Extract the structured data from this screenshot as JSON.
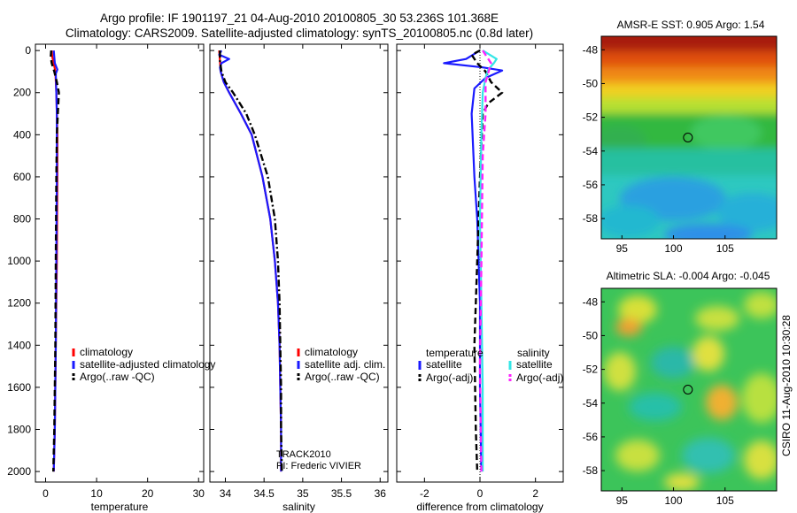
{
  "title": {
    "line1": "Argo profile: IF 1901197_21 04-Aug-2010 20100805_30 53.236S 101.368E",
    "line2": "Climatology: CARS2009. Satellite-adjusted climatology: synTS_20100805.nc (0.8d later)"
  },
  "side_label": "CSIRO 11-Aug-2010 10:30:28",
  "colors": {
    "climatology": "#ff0000",
    "satellite": "#1a1aff",
    "argo": "#000000",
    "sat_salinity": "#33e6e6",
    "argo_salinity": "#ff22ff"
  },
  "chart_data": [
    {
      "type": "line",
      "id": "temperature",
      "xlabel": "temperature",
      "xlim": [
        -2,
        31
      ],
      "ylim": [
        2050,
        -30
      ],
      "xticks": [
        0,
        10,
        20,
        30
      ],
      "yticks": [
        0,
        200,
        400,
        600,
        800,
        1000,
        1200,
        1400,
        1600,
        1800,
        2000
      ],
      "legend": [
        "climatology",
        "satellite-adjusted climatology",
        "Argo(..raw -QC)"
      ],
      "series": [
        {
          "name": "climatology",
          "style": "solid",
          "color": "#ff0000",
          "points": [
            [
              1.2,
              0
            ],
            [
              1.3,
              30
            ],
            [
              1.6,
              60
            ],
            [
              1.9,
              100
            ],
            [
              2.1,
              200
            ],
            [
              2.2,
              300
            ],
            [
              2.3,
              400
            ],
            [
              2.3,
              600
            ],
            [
              2.2,
              1000
            ],
            [
              2.0,
              1400
            ],
            [
              1.8,
              1800
            ],
            [
              1.6,
              2000
            ]
          ]
        },
        {
          "name": "satellite-adjusted climatology",
          "style": "solid",
          "color": "#1a1aff",
          "points": [
            [
              1.6,
              0
            ],
            [
              1.7,
              30
            ],
            [
              1.8,
              60
            ],
            [
              2.3,
              90
            ],
            [
              2.0,
              110
            ],
            [
              2.1,
              200
            ],
            [
              2.2,
              300
            ],
            [
              2.2,
              400
            ],
            [
              2.2,
              600
            ],
            [
              2.1,
              1000
            ],
            [
              2.0,
              1400
            ],
            [
              1.8,
              1800
            ],
            [
              1.6,
              2000
            ]
          ]
        },
        {
          "name": "Argo(..raw -QC)",
          "style": "dash",
          "color": "#000000",
          "points": [
            [
              1.1,
              0
            ],
            [
              1.0,
              30
            ],
            [
              1.2,
              60
            ],
            [
              1.7,
              100
            ],
            [
              2.2,
              150
            ],
            [
              2.6,
              200
            ],
            [
              2.5,
              250
            ],
            [
              2.4,
              300
            ],
            [
              2.2,
              400
            ],
            [
              2.1,
              600
            ],
            [
              2.0,
              1000
            ],
            [
              1.9,
              1400
            ],
            [
              1.7,
              1800
            ],
            [
              1.5,
              2000
            ]
          ]
        }
      ]
    },
    {
      "type": "line",
      "id": "salinity",
      "xlabel": "salinity",
      "xlim": [
        33.8,
        36.1
      ],
      "ylim": [
        2050,
        -30
      ],
      "xticks": [
        34,
        34.5,
        35,
        35.5,
        36
      ],
      "legend": [
        "climatology",
        "satellite adj. clim.",
        "Argo(..raw -QC)"
      ],
      "annotations": [
        "TRACK2010",
        "PI: Frederic VIVIER"
      ],
      "series": [
        {
          "name": "climatology",
          "style": "solid",
          "color": "#ff0000",
          "points": [
            [
              33.92,
              0
            ],
            [
              33.93,
              50
            ],
            [
              33.94,
              100
            ],
            [
              33.98,
              150
            ],
            [
              34.05,
              200
            ],
            [
              34.2,
              300
            ],
            [
              34.34,
              400
            ],
            [
              34.48,
              600
            ],
            [
              34.58,
              800
            ],
            [
              34.64,
              1000
            ],
            [
              34.68,
              1200
            ],
            [
              34.7,
              1400
            ],
            [
              34.71,
              1600
            ],
            [
              34.72,
              1800
            ],
            [
              34.72,
              2000
            ]
          ]
        },
        {
          "name": "satellite adj. clim.",
          "style": "solid",
          "color": "#1a1aff",
          "points": [
            [
              33.95,
              0
            ],
            [
              33.92,
              20
            ],
            [
              34.05,
              40
            ],
            [
              33.95,
              60
            ],
            [
              33.93,
              80
            ],
            [
              33.94,
              100
            ],
            [
              33.98,
              150
            ],
            [
              34.05,
              200
            ],
            [
              34.2,
              300
            ],
            [
              34.34,
              400
            ],
            [
              34.48,
              600
            ],
            [
              34.58,
              800
            ],
            [
              34.64,
              1000
            ],
            [
              34.68,
              1200
            ],
            [
              34.7,
              1400
            ],
            [
              34.71,
              1600
            ],
            [
              34.72,
              1800
            ],
            [
              34.72,
              2000
            ]
          ]
        },
        {
          "name": "Argo(..raw -QC)",
          "style": "dashdot",
          "color": "#000000",
          "points": [
            [
              33.93,
              0
            ],
            [
              33.93,
              50
            ],
            [
              33.95,
              100
            ],
            [
              34.0,
              150
            ],
            [
              34.1,
              200
            ],
            [
              34.27,
              300
            ],
            [
              34.38,
              400
            ],
            [
              34.55,
              600
            ],
            [
              34.64,
              800
            ],
            [
              34.68,
              1000
            ],
            [
              34.7,
              1200
            ],
            [
              34.71,
              1400
            ],
            [
              34.72,
              1600
            ],
            [
              34.72,
              1800
            ],
            [
              34.73,
              2000
            ]
          ]
        }
      ]
    },
    {
      "type": "line",
      "id": "difference",
      "xlabel": "difference from climatology",
      "xlim": [
        -3,
        3
      ],
      "ylim": [
        2050,
        -30
      ],
      "xticks": [
        -2,
        0,
        2
      ],
      "legend": {
        "temperature_heading": "temperature",
        "salinity_heading": "salinity",
        "items": [
          "satellite",
          "Argo(-adj)",
          "satellite",
          "Argo(-adj)"
        ]
      },
      "series": [
        {
          "name": "satellite",
          "group": "temperature",
          "style": "solid",
          "color": "#1a1aff",
          "points": [
            [
              0,
              0
            ],
            [
              -0.5,
              40
            ],
            [
              -1.3,
              60
            ],
            [
              0.1,
              80
            ],
            [
              0.8,
              95
            ],
            [
              0.2,
              130
            ],
            [
              -0.2,
              180
            ],
            [
              -0.3,
              300
            ],
            [
              -0.2,
              600
            ],
            [
              -0.1,
              800
            ],
            [
              0,
              1200
            ],
            [
              0,
              1600
            ],
            [
              0.05,
              2000
            ]
          ]
        },
        {
          "name": "Argo(-adj)",
          "group": "temperature",
          "style": "dash",
          "color": "#000000",
          "points": [
            [
              0,
              0
            ],
            [
              -0.3,
              20
            ],
            [
              -0.1,
              60
            ],
            [
              0.2,
              100
            ],
            [
              0.4,
              150
            ],
            [
              0.8,
              200
            ],
            [
              0.3,
              250
            ],
            [
              0.1,
              300
            ],
            [
              0,
              600
            ],
            [
              -0.1,
              1000
            ],
            [
              -0.2,
              1400
            ],
            [
              -0.15,
              1800
            ],
            [
              -0.1,
              2000
            ]
          ]
        },
        {
          "name": "satellite",
          "group": "salinity",
          "style": "solid",
          "color": "#33e6e6",
          "points": [
            [
              0.1,
              0
            ],
            [
              0.6,
              40
            ],
            [
              0.5,
              60
            ],
            [
              0.3,
              90
            ],
            [
              0.2,
              130
            ],
            [
              0.1,
              200
            ],
            [
              0.05,
              400
            ],
            [
              0,
              800
            ],
            [
              0.05,
              1200
            ],
            [
              0.1,
              1600
            ],
            [
              0.1,
              2000
            ]
          ]
        },
        {
          "name": "Argo(-adj)",
          "group": "salinity",
          "style": "dash",
          "color": "#ff22ff",
          "points": [
            [
              0.1,
              0
            ],
            [
              0.4,
              60
            ],
            [
              0.2,
              150
            ],
            [
              0.2,
              300
            ],
            [
              0.1,
              500
            ],
            [
              0.05,
              1000
            ],
            [
              0,
              1500
            ],
            [
              0.05,
              2000
            ]
          ]
        }
      ]
    },
    {
      "type": "heatmap",
      "id": "sst-map",
      "title": "AMSR-E SST: 0.905  Argo: 1.54",
      "xlim": [
        93,
        110
      ],
      "ylim": [
        -59.2,
        -47.2
      ],
      "xticks": [
        95,
        100,
        105
      ],
      "yticks": [
        -48,
        -50,
        -52,
        -54,
        -56,
        -58
      ],
      "marker": {
        "lon": 101.4,
        "lat": -53.2
      }
    },
    {
      "type": "heatmap",
      "id": "sla-map",
      "title": "Altimetric SLA: -0.004  Argo: -0.045",
      "xlim": [
        93,
        110
      ],
      "ylim": [
        -59.2,
        -47.2
      ],
      "xticks": [
        95,
        100,
        105
      ],
      "yticks": [
        -48,
        -50,
        -52,
        -54,
        -56,
        -58
      ],
      "marker": {
        "lon": 101.4,
        "lat": -53.2
      }
    }
  ]
}
